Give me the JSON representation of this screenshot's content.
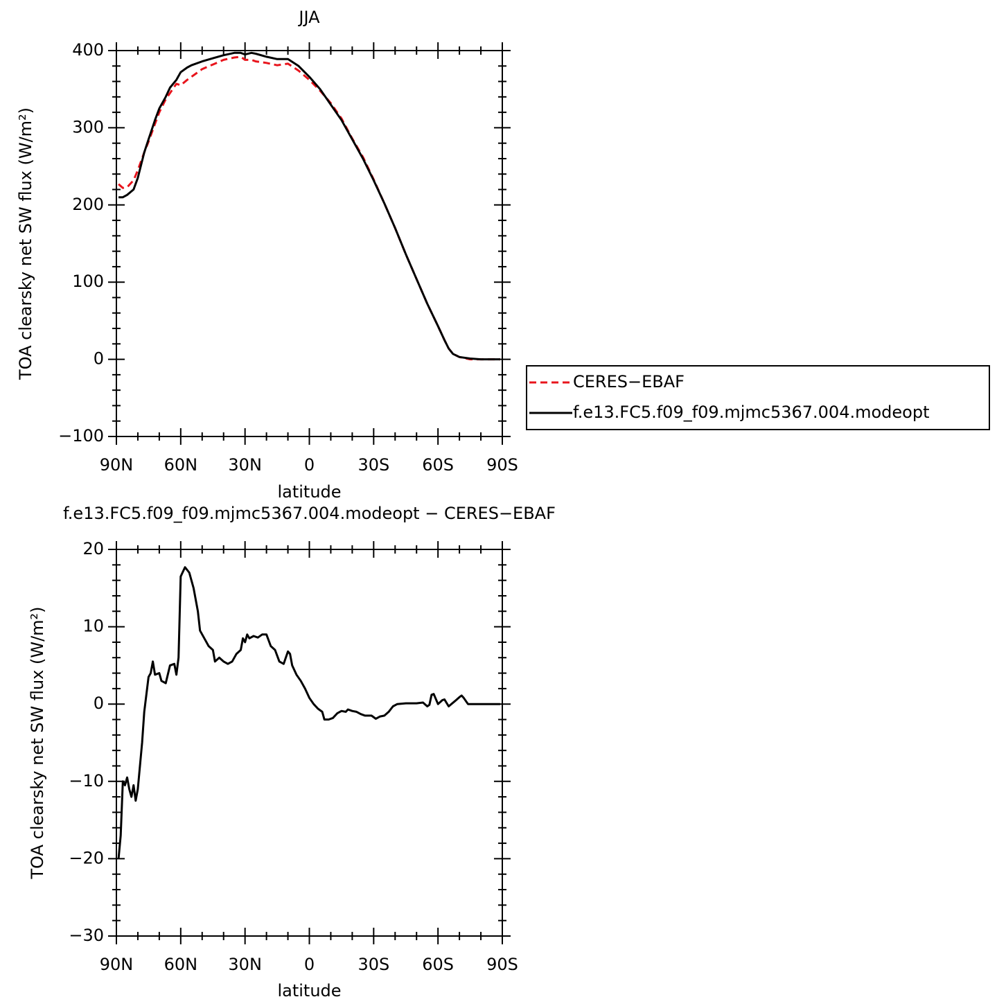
{
  "chart_data": [
    {
      "type": "line",
      "title": "JJA",
      "xlabel": "latitude",
      "ylabel": "TOA clearsky net SW flux (W/m²)",
      "x": [
        89,
        87,
        85,
        82,
        80,
        77,
        75,
        72,
        70,
        67,
        65,
        62,
        60,
        57,
        55,
        50,
        45,
        40,
        35,
        32,
        30,
        27,
        25,
        20,
        15,
        10,
        5,
        0,
        -5,
        -10,
        -15,
        -20,
        -25,
        -30,
        -35,
        -40,
        -45,
        -50,
        -55,
        -60,
        -63,
        -65,
        -67,
        -70,
        -75,
        -80,
        -85,
        -89
      ],
      "xlim": [
        90,
        -90
      ],
      "xticks": [
        {
          "value": 90,
          "label": "90N"
        },
        {
          "value": 60,
          "label": "60N"
        },
        {
          "value": 30,
          "label": "30N"
        },
        0,
        {
          "value": -30,
          "label": "30S"
        },
        {
          "value": -60,
          "label": "60S"
        },
        {
          "value": -90,
          "label": "90S"
        }
      ],
      "ylim": [
        -100,
        400
      ],
      "yticks": [
        {
          "value": -100,
          "label": "−100"
        },
        0,
        100,
        200,
        300,
        400
      ],
      "legend": "right",
      "series": [
        {
          "name": "CERES−EBAF",
          "color": "#e8141c",
          "linestyle": "dashed",
          "values": [
            227,
            222,
            223,
            232,
            245,
            268,
            282,
            305,
            320,
            337,
            345,
            357,
            355,
            362,
            366,
            376,
            382,
            388,
            391,
            392,
            388,
            388,
            386,
            384,
            381,
            383,
            374,
            362,
            348,
            332,
            312,
            286,
            262,
            233,
            202,
            170,
            136,
            104,
            72,
            43,
            25,
            14,
            7,
            3,
            0,
            0,
            0,
            0
          ]
        },
        {
          "name": "f.e13.FC5.f09_f09.mjmc5367.004.modeopt",
          "color": "#000000",
          "linestyle": "solid",
          "values": [
            210,
            210,
            213,
            220,
            235,
            268,
            285,
            310,
            325,
            340,
            352,
            362,
            372,
            378,
            381,
            386,
            390,
            394,
            397,
            397,
            395,
            397,
            396,
            392,
            389,
            389,
            380,
            366,
            350,
            330,
            310,
            285,
            260,
            232,
            202,
            170,
            136,
            104,
            72,
            43,
            25,
            14,
            7,
            3,
            1,
            0,
            0,
            0
          ]
        }
      ]
    },
    {
      "type": "line",
      "title": "f.e13.FC5.f09_f09.mjmc5367.004.modeopt − CERES−EBAF",
      "xlabel": "latitude",
      "ylabel": "TOA clearsky net SW flux (W/m²)",
      "x": [
        89,
        88,
        87,
        86,
        85,
        84,
        83,
        82,
        81,
        80,
        78,
        77,
        75,
        74,
        73,
        72,
        70,
        69,
        67,
        65,
        63,
        62,
        61,
        60,
        58,
        56,
        54,
        52,
        51,
        49,
        47,
        45,
        44,
        42,
        40,
        38,
        36,
        34,
        32,
        31,
        30,
        29,
        28,
        26,
        24,
        22,
        20,
        18,
        16,
        14,
        12,
        10,
        9,
        8,
        6,
        4,
        2,
        0,
        -2,
        -4,
        -6,
        -7,
        -9,
        -11,
        -13,
        -15,
        -17,
        -18,
        -20,
        -22,
        -24,
        -26,
        -29,
        -31,
        -33,
        -35,
        -37,
        -39,
        -41,
        -45,
        -50,
        -53,
        -55,
        -56,
        -57,
        -58,
        -60,
        -62,
        -63,
        -65,
        -68,
        -70,
        -71,
        -72,
        -74,
        -80,
        -89
      ],
      "xlim": [
        90,
        -90
      ],
      "xticks": [
        {
          "value": 90,
          "label": "90N"
        },
        {
          "value": 60,
          "label": "60N"
        },
        {
          "value": 30,
          "label": "30N"
        },
        0,
        {
          "value": -30,
          "label": "30S"
        },
        {
          "value": -60,
          "label": "60S"
        },
        {
          "value": -90,
          "label": "90S"
        }
      ],
      "ylim": [
        -30,
        20
      ],
      "yticks": [
        {
          "value": -30,
          "label": "−30"
        },
        {
          "value": -20,
          "label": "−20"
        },
        {
          "value": -10,
          "label": "−10"
        },
        0,
        10,
        20
      ],
      "color": "#000000",
      "values": [
        -20,
        -17,
        -10,
        -10.5,
        -9.5,
        -11,
        -12,
        -10.5,
        -12.5,
        -11,
        -5,
        -1,
        3.5,
        4,
        5.5,
        3.8,
        4,
        3,
        2.7,
        5,
        5.2,
        3.8,
        6,
        16.5,
        17.7,
        17,
        15,
        12,
        9.5,
        8.5,
        7.5,
        7,
        5.5,
        6,
        5.5,
        5.2,
        5.5,
        6.5,
        7,
        8.5,
        8,
        9,
        8.5,
        8.8,
        8.6,
        9,
        9,
        7.5,
        7,
        5.5,
        5.2,
        6.8,
        6.5,
        5,
        3.8,
        3,
        2,
        0.8,
        0,
        -0.6,
        -1,
        -2,
        -2,
        -1.8,
        -1.2,
        -0.9,
        -1,
        -0.7,
        -0.9,
        -1,
        -1.3,
        -1.5,
        -1.5,
        -1.9,
        -1.6,
        -1.5,
        -1,
        -0.3,
        0,
        0.1,
        0.1,
        0.2,
        -0.3,
        -0.1,
        1.2,
        1.3,
        0,
        0.5,
        0.6,
        -0.3,
        0.4,
        0.9,
        1.1,
        0.8,
        0,
        0,
        0
      ]
    }
  ]
}
